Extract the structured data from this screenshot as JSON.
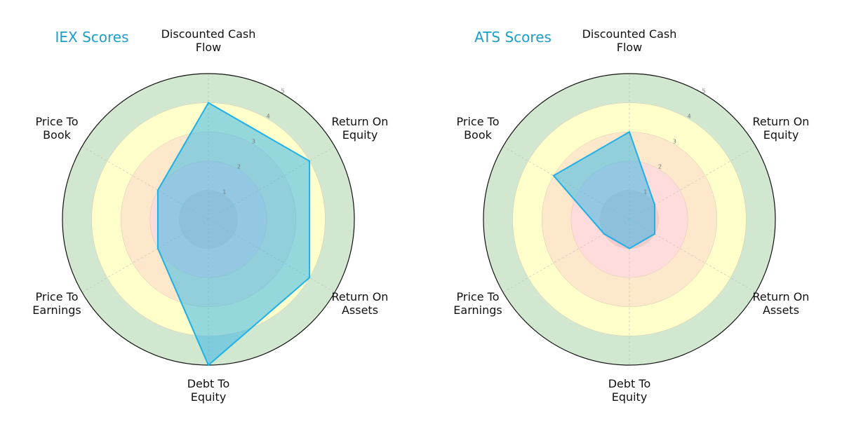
{
  "chart_data": [
    {
      "type": "radar",
      "title": "IEX Scores",
      "axes": [
        "Discounted Cash Flow",
        "Return On Equity",
        "Return On Assets",
        "Debt To Equity",
        "Price To Earnings",
        "Price To Book"
      ],
      "values": [
        4,
        4,
        4,
        5,
        2,
        2
      ],
      "rlim": [
        0,
        5
      ],
      "rticks": [
        "1",
        "2",
        "3",
        "4",
        "5"
      ]
    },
    {
      "type": "radar",
      "title": "ATS Scores",
      "axes": [
        "Discounted Cash Flow",
        "Return On Equity",
        "Return On Assets",
        "Debt To Equity",
        "Price To Earnings",
        "Price To Book"
      ],
      "values": [
        3,
        1,
        1,
        1,
        1,
        3
      ],
      "rlim": [
        0,
        5
      ],
      "rticks": [
        "1",
        "2",
        "3",
        "4",
        "5"
      ]
    }
  ],
  "colors": {
    "title": "#1a9fc9",
    "series_line": "#1fb0e6",
    "series_fill": "#3cb8e8",
    "band_0_1": "#f2c9cc",
    "band_1_2": "#ffdcdc",
    "band_2_3": "#fde8cc",
    "band_3_4": "#ffffcc",
    "band_4_5": "#d1e7cf"
  }
}
